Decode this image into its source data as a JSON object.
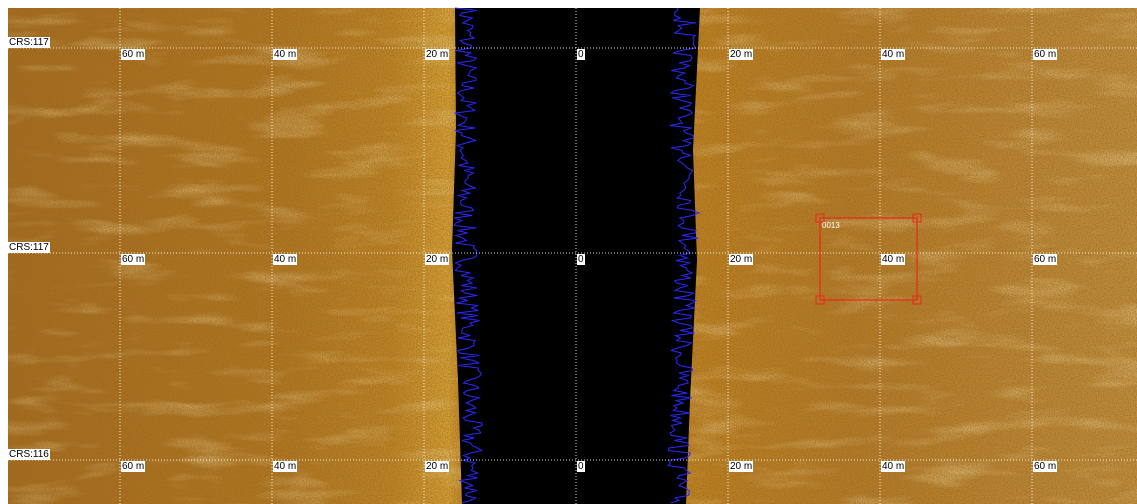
{
  "rows": [
    {
      "course": "CRS:117",
      "ranges": [
        "60 m",
        "40 m",
        "20 m",
        "0",
        "20 m",
        "40 m",
        "60 m"
      ]
    },
    {
      "course": "CRS:117",
      "ranges": [
        "60 m",
        "40 m",
        "20 m",
        "0",
        "20 m",
        "40 m",
        "60 m"
      ]
    },
    {
      "course": "CRS:116",
      "ranges": [
        "60 m",
        "40 m",
        "20 m",
        "0",
        "20 m",
        "40 m",
        "60 m"
      ]
    }
  ],
  "target": {
    "label": "0013"
  }
}
